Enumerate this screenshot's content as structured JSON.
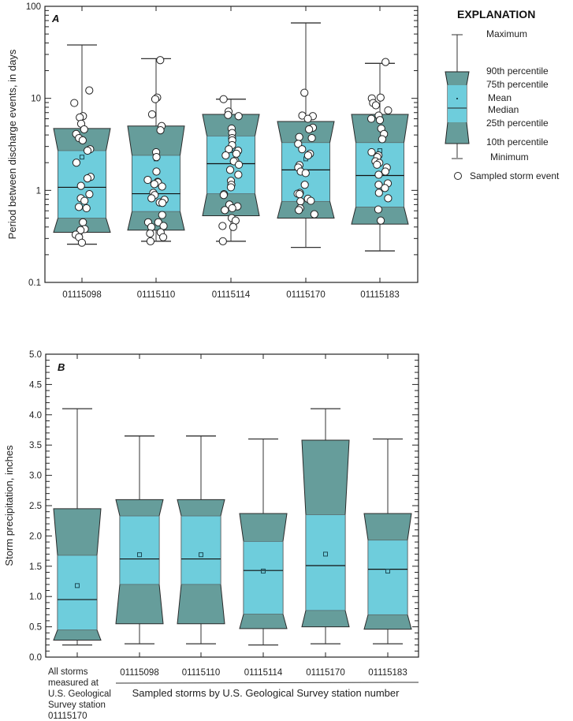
{
  "colors": {
    "outer": "#669d9b",
    "inner": "#6ecddc",
    "edge": "#333333",
    "point_fill": "#ffffff"
  },
  "legend": {
    "title": "EXPLANATION",
    "maximum": "Maximum",
    "p90": "90th percentile",
    "p75": "75th percentile",
    "mean": "Mean",
    "median": "Median",
    "p25": "25th percentile",
    "p10": "10th percentile",
    "minimum": "Minimum",
    "sampled": "Sampled storm event"
  },
  "chart_data": [
    {
      "type": "box",
      "panel": "A",
      "ylabel": "Period between discharge events, in days",
      "yscale": "log",
      "ylim": [
        0.1,
        100
      ],
      "yticks": [
        "0.1",
        "1",
        "10",
        "100"
      ],
      "categories": [
        "01115098",
        "01115110",
        "01115114",
        "01115170",
        "01115183"
      ],
      "boxes": [
        {
          "min": 0.26,
          "p10": 0.35,
          "p25": 0.5,
          "median": 1.08,
          "mean": 2.3,
          "p75": 2.7,
          "p90": 4.7,
          "max": 38
        },
        {
          "min": 0.28,
          "p10": 0.37,
          "p25": 0.59,
          "median": 0.92,
          "mean": 2.2,
          "p75": 2.4,
          "p90": 5.0,
          "max": 27
        },
        {
          "min": 0.28,
          "p10": 0.53,
          "p25": 0.92,
          "median": 1.95,
          "mean": 2.7,
          "p75": 3.9,
          "p90": 6.7,
          "max": 9.8
        },
        {
          "min": 0.24,
          "p10": 0.5,
          "p25": 0.76,
          "median": 1.67,
          "mean": 2.2,
          "p75": 3.3,
          "p90": 5.6,
          "max": 66
        },
        {
          "min": 0.22,
          "p10": 0.43,
          "p25": 0.66,
          "median": 1.45,
          "mean": 2.7,
          "p75": 3.3,
          "p90": 6.7,
          "max": 24
        }
      ],
      "points": [
        [
          12.2,
          8.9,
          6.4,
          6.2,
          5.3,
          4.6,
          4.1,
          3.7,
          3.5,
          2.8,
          2.7,
          2.0,
          1.4,
          1.35,
          1.12,
          0.91,
          0.82,
          0.77,
          0.66,
          0.64,
          0.45,
          0.38,
          0.37,
          0.33,
          0.31,
          0.27
        ],
        [
          26,
          10.2,
          9.8,
          6.7,
          5.0,
          4.5,
          2.6,
          2.3,
          1.6,
          1.3,
          1.24,
          1.22,
          1.17,
          1.1,
          0.94,
          0.89,
          0.82,
          0.79,
          0.74,
          0.73,
          0.54,
          0.45,
          0.45,
          0.41,
          0.4,
          0.35,
          0.34,
          0.31,
          0.28
        ],
        [
          9.8,
          7.2,
          6.6,
          6.4,
          4.7,
          4.2,
          3.7,
          3.5,
          3.1,
          2.8,
          2.7,
          2.5,
          2.4,
          2.1,
          2.07,
          1.9,
          1.67,
          1.48,
          1.27,
          1.15,
          1.08,
          0.91,
          0.89,
          0.7,
          0.67,
          0.64,
          0.61,
          0.5,
          0.47,
          0.41,
          0.4,
          0.28
        ],
        [
          11.5,
          6.5,
          6.4,
          6.0,
          4.8,
          4.6,
          3.8,
          3.7,
          3.2,
          2.8,
          2.5,
          2.4,
          1.88,
          1.77,
          1.6,
          1.54,
          1.15,
          0.94,
          0.92,
          0.91,
          0.81,
          0.77,
          0.76,
          0.64,
          0.61,
          0.55
        ],
        [
          24.8,
          10.2,
          10,
          8.9,
          8.4,
          7.4,
          6.5,
          6.0,
          5.8,
          4.7,
          4.1,
          3.6,
          2.6,
          2.4,
          2.3,
          2.07,
          1.99,
          1.9,
          1.77,
          1.6,
          1.48,
          1.19,
          1.15,
          1.06,
          0.94,
          0.82,
          0.62,
          0.47
        ]
      ]
    },
    {
      "type": "box",
      "panel": "B",
      "ylabel": "Storm precipitation, inches",
      "yscale": "linear",
      "ylim": [
        0,
        5
      ],
      "yticks": [
        "0.0",
        "0.5",
        "1.0",
        "1.5",
        "2.0",
        "2.5",
        "3.0",
        "3.5",
        "4.0",
        "4.5",
        "5.0"
      ],
      "categories": [
        "All storms measured at U.S. Geological Survey station 01115170",
        "01115098",
        "01115110",
        "01115114",
        "01115170",
        "01115183"
      ],
      "category_lines_first": [
        "All storms",
        "measured at",
        "U.S. Geological",
        "Survey station",
        "01115170"
      ],
      "xlabel": "Sampled storms by U.S. Geological Survey station number",
      "boxes": [
        {
          "min": 0.2,
          "p10": 0.28,
          "p25": 0.45,
          "median": 0.95,
          "mean": 1.18,
          "p75": 1.68,
          "p90": 2.45,
          "max": 4.1
        },
        {
          "min": 0.22,
          "p10": 0.55,
          "p25": 1.2,
          "median": 1.62,
          "mean": 1.69,
          "p75": 2.33,
          "p90": 2.6,
          "max": 3.65
        },
        {
          "min": 0.22,
          "p10": 0.55,
          "p25": 1.2,
          "median": 1.62,
          "mean": 1.69,
          "p75": 2.33,
          "p90": 2.6,
          "max": 3.65
        },
        {
          "min": 0.2,
          "p10": 0.47,
          "p25": 0.71,
          "median": 1.43,
          "mean": 1.42,
          "p75": 1.91,
          "p90": 2.37,
          "max": 3.6
        },
        {
          "min": 0.22,
          "p10": 0.5,
          "p25": 0.77,
          "median": 1.51,
          "mean": 1.7,
          "p75": 2.35,
          "p90": 3.58,
          "max": 4.1
        },
        {
          "min": 0.22,
          "p10": 0.46,
          "p25": 0.7,
          "median": 1.45,
          "mean": 1.42,
          "p75": 1.93,
          "p90": 2.37,
          "max": 3.6
        }
      ]
    }
  ]
}
